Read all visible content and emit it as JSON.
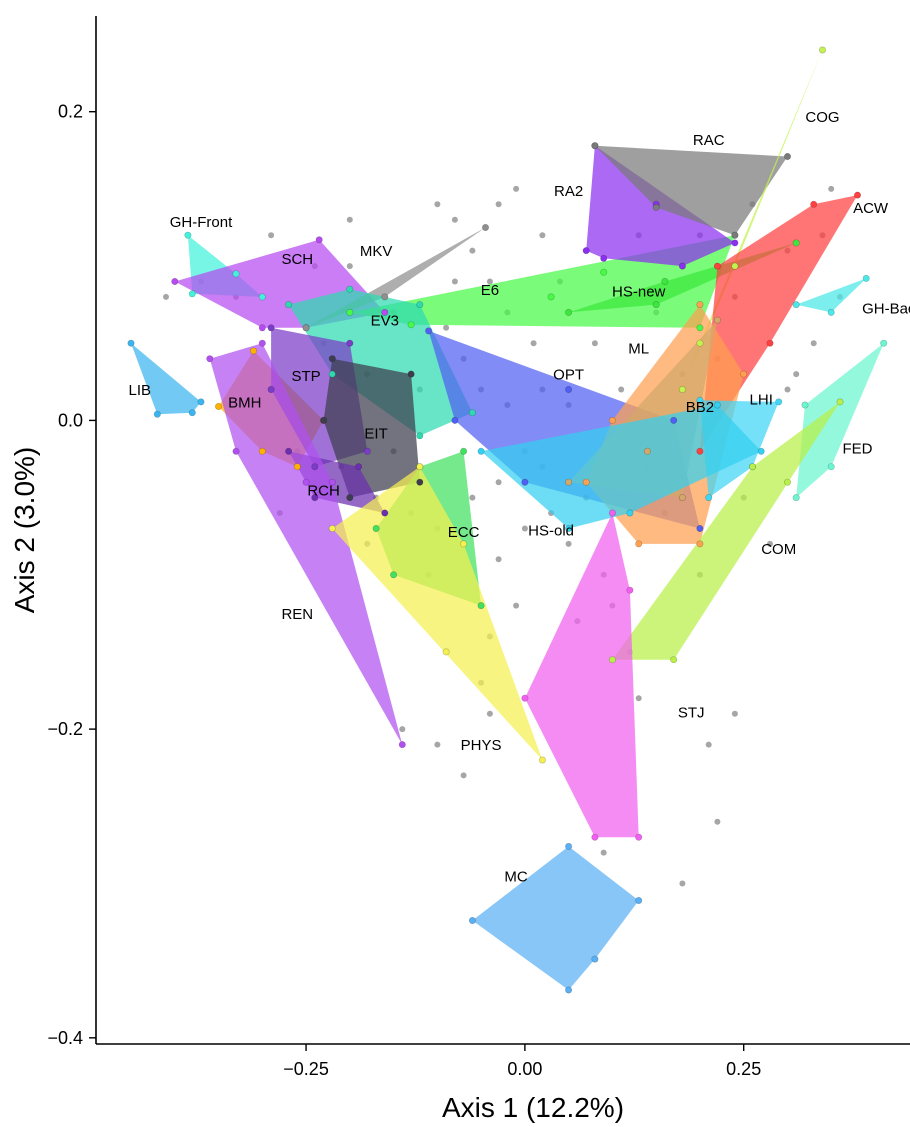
{
  "chart_data": {
    "type": "scatter",
    "xlabel": "Axis 1 (12.2%)",
    "ylabel": "Axis 2 (3.0%)",
    "xlim": [
      -0.49,
      0.44
    ],
    "ylim": [
      -0.404,
      0.262
    ],
    "x_ticks": [
      -0.25,
      0.0,
      0.25
    ],
    "x_tick_labels": [
      "−0.25",
      "0.00",
      "0.25"
    ],
    "y_ticks": [
      -0.4,
      -0.2,
      0.0,
      0.2
    ],
    "y_tick_labels": [
      "−0.4",
      "−0.2",
      "0.0",
      "0.2"
    ],
    "grid": false,
    "legend": "none",
    "background_points": [
      [
        -0.41,
        0.08
      ],
      [
        -0.37,
        0.09
      ],
      [
        -0.29,
        0.12
      ],
      [
        -0.24,
        0.1
      ],
      [
        -0.2,
        0.13
      ],
      [
        -0.1,
        0.14
      ],
      [
        -0.08,
        0.13
      ],
      [
        -0.06,
        0.11
      ],
      [
        -0.03,
        0.14
      ],
      [
        -0.01,
        0.15
      ],
      [
        0.02,
        0.12
      ],
      [
        -0.04,
        0.09
      ],
      [
        -0.02,
        0.07
      ],
      [
        0.01,
        0.05
      ],
      [
        -0.09,
        0.06
      ],
      [
        -0.12,
        0.02
      ],
      [
        -0.07,
        0.04
      ],
      [
        -0.05,
        0.02
      ],
      [
        -0.02,
        0.01
      ],
      [
        0.0,
        -0.02
      ],
      [
        0.02,
        -0.03
      ],
      [
        -0.06,
        -0.05
      ],
      [
        -0.03,
        -0.04
      ],
      [
        0.0,
        -0.07
      ],
      [
        -0.03,
        -0.09
      ],
      [
        0.03,
        -0.06
      ],
      [
        0.05,
        -0.08
      ],
      [
        0.07,
        -0.05
      ],
      [
        -0.04,
        -0.14
      ],
      [
        -0.05,
        -0.17
      ],
      [
        -0.04,
        -0.19
      ],
      [
        -0.1,
        -0.21
      ],
      [
        -0.14,
        -0.2
      ],
      [
        -0.21,
        -0.03
      ],
      [
        -0.26,
        -0.02
      ],
      [
        -0.28,
        -0.06
      ],
      [
        -0.17,
        -0.05
      ],
      [
        -0.18,
        -0.08
      ],
      [
        0.09,
        -0.1
      ],
      [
        0.1,
        -0.12
      ],
      [
        0.12,
        -0.15
      ],
      [
        0.13,
        -0.18
      ],
      [
        0.21,
        -0.21
      ],
      [
        0.24,
        -0.19
      ],
      [
        0.22,
        -0.26
      ],
      [
        0.18,
        -0.3
      ],
      [
        0.09,
        -0.28
      ],
      [
        0.25,
        -0.05
      ],
      [
        0.28,
        -0.08
      ],
      [
        0.2,
        -0.1
      ],
      [
        0.3,
        0.02
      ],
      [
        0.33,
        0.05
      ],
      [
        0.34,
        0.12
      ],
      [
        0.35,
        0.15
      ],
      [
        0.3,
        0.11
      ],
      [
        0.26,
        0.14
      ],
      [
        0.2,
        0.12
      ],
      [
        0.16,
        0.09
      ],
      [
        0.13,
        0.12
      ],
      [
        0.15,
        0.07
      ],
      [
        0.11,
        0.02
      ],
      [
        0.08,
        0.05
      ],
      [
        0.05,
        0.01
      ],
      [
        0.14,
        -0.03
      ],
      [
        0.16,
        -0.06
      ],
      [
        0.18,
        0.03
      ],
      [
        0.22,
        0.04
      ],
      [
        0.24,
        0.08
      ],
      [
        0.31,
        0.03
      ],
      [
        0.36,
        0.08
      ],
      [
        -0.23,
        0.05
      ],
      [
        -0.18,
        0.03
      ],
      [
        -0.15,
        -0.02
      ],
      [
        -0.13,
        -0.06
      ],
      [
        -0.1,
        -0.07
      ],
      [
        -0.08,
        0.09
      ],
      [
        0.04,
        0.09
      ],
      [
        -0.15,
        0.07
      ],
      [
        -0.01,
        -0.12
      ],
      [
        0.06,
        -0.13
      ],
      [
        -0.2,
        0.1
      ],
      [
        -0.33,
        0.08
      ],
      [
        0.02,
        0.02
      ],
      [
        -0.11,
        -0.1
      ],
      [
        -0.07,
        -0.23
      ]
    ],
    "groups": [
      {
        "name": "GH-Front",
        "color": "#43F2DC",
        "label": [
          -0.37,
          0.128
        ],
        "points": [
          [
            -0.385,
            0.12
          ],
          [
            -0.3,
            0.08
          ],
          [
            -0.33,
            0.095
          ],
          [
            -0.38,
            0.082
          ]
        ]
      },
      {
        "name": "SCH",
        "color": "#B54BF0",
        "label": [
          -0.26,
          0.104
        ],
        "points": [
          [
            -0.4,
            0.09
          ],
          [
            -0.235,
            0.117
          ],
          [
            -0.16,
            0.07
          ],
          [
            -0.25,
            0.06
          ],
          [
            -0.3,
            0.06
          ]
        ]
      },
      {
        "name": "MKV",
        "color": "#8F8F8F",
        "label": [
          -0.17,
          0.109
        ],
        "points": [
          [
            -0.25,
            0.06
          ],
          [
            -0.045,
            0.125
          ],
          [
            -0.16,
            0.08
          ]
        ]
      },
      {
        "name": "E6",
        "color": "#46FA46",
        "label": [
          -0.04,
          0.084
        ],
        "points": [
          [
            -0.2,
            0.07
          ],
          [
            0.03,
            0.08
          ],
          [
            0.09,
            0.096
          ],
          [
            0.24,
            0.12
          ],
          [
            0.2,
            0.06
          ],
          [
            -0.13,
            0.062
          ]
        ]
      },
      {
        "name": "HS-new",
        "color": "#3CE83C",
        "label": [
          0.13,
          0.083
        ],
        "points": [
          [
            0.05,
            0.07
          ],
          [
            0.16,
            0.09
          ],
          [
            0.31,
            0.115
          ],
          [
            0.15,
            0.075
          ]
        ]
      },
      {
        "name": "RA2",
        "color": "#8B2FF0",
        "label": [
          0.05,
          0.148
        ],
        "points": [
          [
            0.08,
            0.178
          ],
          [
            0.15,
            0.14
          ],
          [
            0.24,
            0.115
          ],
          [
            0.18,
            0.1
          ],
          [
            0.09,
            0.105
          ],
          [
            0.07,
            0.11
          ]
        ]
      },
      {
        "name": "RAC",
        "color": "#7A7A7A",
        "label": [
          0.21,
          0.181
        ],
        "points": [
          [
            0.08,
            0.178
          ],
          [
            0.3,
            0.171
          ],
          [
            0.24,
            0.12
          ],
          [
            0.15,
            0.138
          ]
        ]
      },
      {
        "name": "COG",
        "color": "#C4F24E",
        "label": [
          0.34,
          0.196
        ],
        "points": [
          [
            0.34,
            0.24
          ],
          [
            0.2,
            0.05
          ],
          [
            0.18,
            0.02
          ],
          [
            0.24,
            0.1
          ]
        ]
      },
      {
        "name": "ACW",
        "color": "#FF4040",
        "label": [
          0.395,
          0.137
        ],
        "points": [
          [
            0.38,
            0.146
          ],
          [
            0.28,
            0.05
          ],
          [
            0.2,
            -0.02
          ],
          [
            0.22,
            0.1
          ],
          [
            0.33,
            0.14
          ]
        ]
      },
      {
        "name": "GH-Back",
        "color": "#4AE8E8",
        "label": [
          0.42,
          0.072
        ],
        "points": [
          [
            0.31,
            0.075
          ],
          [
            0.39,
            0.092
          ],
          [
            0.35,
            0.07
          ]
        ]
      },
      {
        "name": "EV3",
        "color": "#2ED9B0",
        "label": [
          -0.16,
          0.064
        ],
        "points": [
          [
            -0.27,
            0.075
          ],
          [
            -0.2,
            0.085
          ],
          [
            -0.12,
            0.075
          ],
          [
            -0.06,
            0.005
          ],
          [
            -0.12,
            -0.01
          ],
          [
            -0.22,
            0.03
          ]
        ]
      },
      {
        "name": "LIB",
        "color": "#3BB5F0",
        "label": [
          -0.44,
          0.019
        ],
        "points": [
          [
            -0.45,
            0.05
          ],
          [
            -0.37,
            0.012
          ],
          [
            -0.38,
            0.005
          ],
          [
            -0.42,
            0.004
          ]
        ]
      },
      {
        "name": "BMH",
        "color": "#FFB000",
        "label": [
          -0.32,
          0.011
        ],
        "points": [
          [
            -0.35,
            0.009
          ],
          [
            -0.31,
            0.045
          ],
          [
            -0.23,
            0.0
          ],
          [
            -0.26,
            -0.03
          ],
          [
            -0.3,
            -0.02
          ]
        ]
      },
      {
        "name": "STP",
        "color": "#7B3CC7",
        "label": [
          -0.25,
          0.028
        ],
        "points": [
          [
            -0.29,
            0.06
          ],
          [
            -0.2,
            0.05
          ],
          [
            -0.18,
            -0.02
          ],
          [
            -0.24,
            -0.03
          ],
          [
            -0.29,
            0.02
          ]
        ]
      },
      {
        "name": "EIT",
        "color": "#3D3D4F",
        "label": [
          -0.17,
          -0.009
        ],
        "points": [
          [
            -0.22,
            0.04
          ],
          [
            -0.13,
            0.03
          ],
          [
            -0.12,
            -0.04
          ],
          [
            -0.2,
            -0.05
          ],
          [
            -0.23,
            0.0
          ]
        ]
      },
      {
        "name": "RCH",
        "color": "#6B2FB0",
        "label": [
          -0.23,
          -0.046
        ],
        "points": [
          [
            -0.27,
            -0.02
          ],
          [
            -0.19,
            -0.03
          ],
          [
            -0.16,
            -0.06
          ],
          [
            -0.24,
            -0.05
          ]
        ]
      },
      {
        "name": "OPT",
        "color": "#5060F2",
        "label": [
          0.05,
          0.029
        ],
        "points": [
          [
            -0.11,
            0.058
          ],
          [
            0.05,
            0.02
          ],
          [
            0.17,
            0.0
          ],
          [
            0.2,
            -0.07
          ],
          [
            0.0,
            -0.04
          ],
          [
            -0.08,
            0.0
          ]
        ]
      },
      {
        "name": "ML",
        "color": "#FF9F50",
        "label": [
          0.13,
          0.046
        ],
        "points": [
          [
            0.1,
            0.0
          ],
          [
            0.2,
            0.075
          ],
          [
            0.25,
            0.03
          ],
          [
            0.2,
            -0.08
          ],
          [
            0.13,
            -0.08
          ],
          [
            0.07,
            -0.04
          ]
        ]
      },
      {
        "name": "BB2",
        "color": "#D4A86A",
        "label": [
          0.2,
          0.008
        ],
        "points": [
          [
            0.05,
            -0.04
          ],
          [
            0.22,
            0.065
          ],
          [
            0.18,
            -0.05
          ],
          [
            0.14,
            -0.02
          ]
        ]
      },
      {
        "name": "LHI",
        "color": "#40D6F5",
        "label": [
          0.27,
          0.013
        ],
        "points": [
          [
            0.2,
            0.013
          ],
          [
            0.29,
            0.012
          ],
          [
            0.26,
            -0.03
          ],
          [
            0.21,
            -0.05
          ]
        ]
      },
      {
        "name": "FED",
        "color": "#6BF5D0",
        "label": [
          0.38,
          -0.019
        ],
        "points": [
          [
            0.41,
            0.05
          ],
          [
            0.35,
            -0.03
          ],
          [
            0.31,
            -0.05
          ],
          [
            0.32,
            0.01
          ]
        ]
      },
      {
        "name": "HS-old",
        "color": "#33D0F0",
        "label": [
          0.03,
          -0.072
        ],
        "points": [
          [
            -0.05,
            -0.02
          ],
          [
            0.05,
            -0.07
          ],
          [
            0.22,
            0.01
          ],
          [
            0.27,
            -0.02
          ],
          [
            0.12,
            -0.06
          ]
        ]
      },
      {
        "name": "COM",
        "color": "#B8F047",
        "label": [
          0.29,
          -0.084
        ],
        "points": [
          [
            0.1,
            -0.155
          ],
          [
            0.17,
            -0.155
          ],
          [
            0.3,
            -0.04
          ],
          [
            0.36,
            0.012
          ],
          [
            0.26,
            -0.03
          ]
        ]
      },
      {
        "name": "ECC",
        "color": "#40E060",
        "label": [
          -0.07,
          -0.073
        ],
        "points": [
          [
            -0.15,
            -0.1
          ],
          [
            -0.05,
            -0.12
          ],
          [
            -0.07,
            -0.02
          ],
          [
            -0.12,
            -0.03
          ],
          [
            -0.17,
            -0.07
          ]
        ]
      },
      {
        "name": "REN",
        "color": "#B050F0",
        "label": [
          -0.26,
          -0.126
        ],
        "points": [
          [
            -0.36,
            0.04
          ],
          [
            -0.3,
            0.05
          ],
          [
            -0.22,
            -0.04
          ],
          [
            -0.14,
            -0.21
          ],
          [
            -0.25,
            -0.04
          ],
          [
            -0.33,
            -0.02
          ]
        ]
      },
      {
        "name": "PHYS",
        "color": "#F5F050",
        "label": [
          -0.05,
          -0.211
        ],
        "points": [
          [
            -0.22,
            -0.07
          ],
          [
            -0.12,
            -0.03
          ],
          [
            -0.07,
            -0.08
          ],
          [
            0.02,
            -0.22
          ],
          [
            -0.09,
            -0.15
          ]
        ]
      },
      {
        "name": "STJ",
        "color": "#F060F0",
        "label": [
          0.19,
          -0.19
        ],
        "points": [
          [
            0.1,
            -0.06
          ],
          [
            0.12,
            -0.11
          ],
          [
            0.13,
            -0.27
          ],
          [
            0.08,
            -0.27
          ],
          [
            0.0,
            -0.18
          ]
        ]
      },
      {
        "name": "MC",
        "color": "#5AB0F5",
        "label": [
          -0.01,
          -0.296
        ],
        "points": [
          [
            0.05,
            -0.276
          ],
          [
            0.13,
            -0.311
          ],
          [
            0.08,
            -0.349
          ],
          [
            0.05,
            -0.369
          ],
          [
            -0.06,
            -0.324
          ]
        ]
      }
    ]
  }
}
